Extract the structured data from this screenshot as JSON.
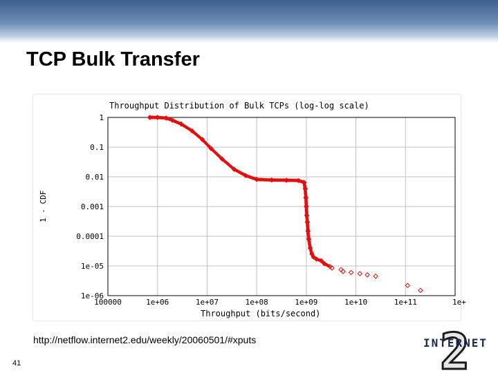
{
  "slide": {
    "title": "TCP Bulk Transfer",
    "url": "http://netflow.internet2.edu/weekly/20060501/#xputs",
    "page_number": "41",
    "logo_text": "INTERNET",
    "logo_numeral": "2",
    "colors": {
      "banner": "#4a6a98",
      "series": "#e01010",
      "grid": "#c0c0c0"
    }
  },
  "chart_data": {
    "type": "scatter",
    "title": "Throughput Distribution of Bulk TCPs (log-log scale)",
    "xlabel": "Throughput (bits/second)",
    "ylabel": "1 - CDF",
    "xscale": "log",
    "yscale": "log",
    "xlim": [
      100000,
      1000000000000
    ],
    "ylim": [
      1e-06,
      1
    ],
    "grid": true,
    "x_ticks": [
      {
        "value": 100000,
        "label": "100000"
      },
      {
        "value": 1000000,
        "label": "1e+06"
      },
      {
        "value": 10000000,
        "label": "1e+07"
      },
      {
        "value": 100000000,
        "label": "1e+08"
      },
      {
        "value": 1000000000,
        "label": "1e+09"
      },
      {
        "value": 10000000000,
        "label": "1e+10"
      },
      {
        "value": 100000000000,
        "label": "1e+11"
      },
      {
        "value": 1000000000000,
        "label": "1e+"
      }
    ],
    "y_ticks": [
      {
        "value": 1,
        "label": "1"
      },
      {
        "value": 0.1,
        "label": "0.1"
      },
      {
        "value": 0.01,
        "label": "0.01"
      },
      {
        "value": 0.001,
        "label": "0.001"
      },
      {
        "value": 0.0001,
        "label": "0.0001"
      },
      {
        "value": 1e-05,
        "label": "1e-05"
      },
      {
        "value": 1e-06,
        "label": "1e-06"
      }
    ],
    "series": [
      {
        "x": [
          700000,
          1000000,
          1500000,
          2000000,
          3000000,
          5000000,
          8000000,
          12000000,
          20000000,
          35000000,
          60000000,
          100000000,
          200000000,
          400000000,
          700000000,
          900000000,
          950000000,
          980000000,
          1000000000,
          1020000000,
          1050000000,
          1080000000,
          1120000000,
          1200000000,
          1300000000,
          1400000000,
          1600000000,
          2000000000,
          2300000000,
          3000000000,
          3300000000,
          5000000000,
          5500000000,
          8000000000,
          12000000000,
          17000000000,
          25000000000,
          110000000000,
          200000000000
        ],
        "y": [
          1,
          1,
          0.95,
          0.8,
          0.6,
          0.35,
          0.18,
          0.09,
          0.04,
          0.018,
          0.011,
          0.0082,
          0.0078,
          0.0077,
          0.0075,
          0.0065,
          0.004,
          0.002,
          0.001,
          0.0005,
          0.0003,
          0.00015,
          8e-05,
          4e-05,
          2.5e-05,
          2e-05,
          1.7e-05,
          1.5e-05,
          1.2e-05,
          9.5e-06,
          8.5e-06,
          7.5e-06,
          6.5e-06,
          6e-06,
          5.5e-06,
          5e-06,
          4.5e-06,
          2.2e-06,
          1.5e-06
        ]
      }
    ]
  }
}
